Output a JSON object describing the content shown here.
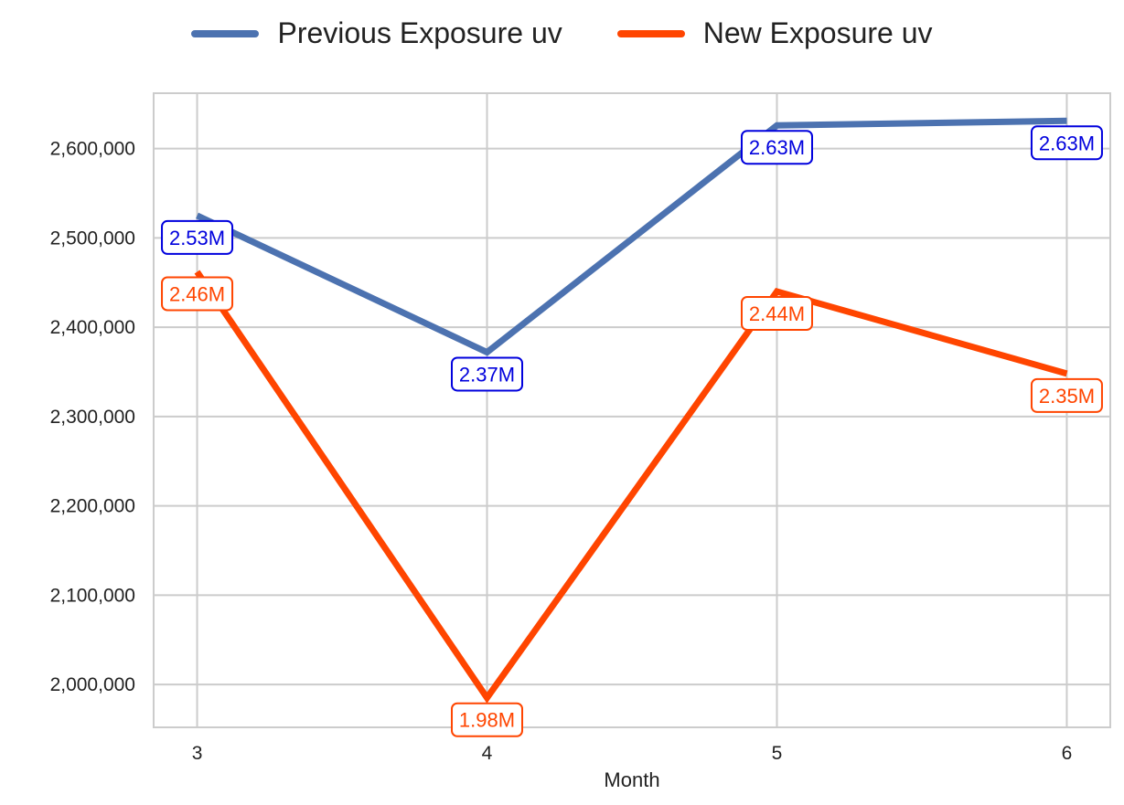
{
  "chart_data": {
    "type": "line",
    "x": [
      3,
      4,
      5,
      6
    ],
    "xlabel": "Month",
    "ylabel": "",
    "xlim": [
      2.85,
      6.15
    ],
    "ylim": [
      1952000,
      2662000
    ],
    "yticks": [
      2000000,
      2100000,
      2200000,
      2300000,
      2400000,
      2500000,
      2600000
    ],
    "ytick_labels": [
      "2,000,000",
      "2,100,000",
      "2,200,000",
      "2,300,000",
      "2,400,000",
      "2,500,000",
      "2,600,000"
    ],
    "xtick_labels": [
      "3",
      "4",
      "5",
      "6"
    ],
    "grid": true,
    "legend_position": "top-center",
    "series": [
      {
        "name": "Previous Exposure uv",
        "values": [
          2525000,
          2372000,
          2626000,
          2631000
        ],
        "labels": [
          "2.53M",
          "2.37M",
          "2.63M",
          "2.63M"
        ],
        "color": "#4c72b0",
        "label_color": "#0000dd"
      },
      {
        "name": "New Exposure uv",
        "values": [
          2462000,
          1985000,
          2440000,
          2348000
        ],
        "labels": [
          "2.46M",
          "1.98M",
          "2.44M",
          "2.35M"
        ],
        "color": "#ff4500",
        "label_color": "#ff4500"
      }
    ]
  }
}
